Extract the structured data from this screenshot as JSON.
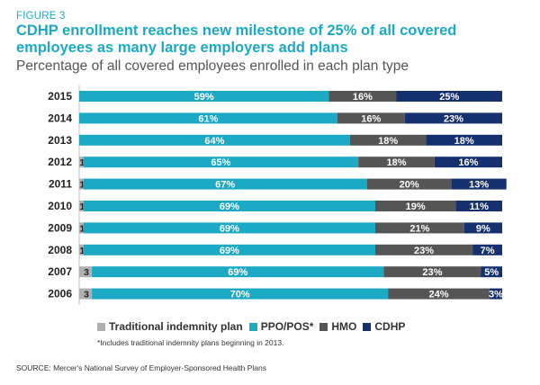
{
  "figure_label": "FIGURE 3",
  "title": "CDHP enrollment reaches new milestone of 25% of all covered employees as many large employers add plans",
  "subtitle": "Percentage of all covered employees enrolled in each plan type",
  "footnote": "*Includes traditional indemnity plans beginning in 2013.",
  "source": "SOURCE: Mercer's National Survey of Employer-Sponsored Health Plans",
  "colors": {
    "traditional_indemnity": "#b0b0b0",
    "ppo_pos": "#1ba9c4",
    "hmo": "#555555",
    "cdhp": "#14306e"
  },
  "chart_data": {
    "type": "bar",
    "orientation": "horizontal",
    "stacked": true,
    "categories": [
      "2015",
      "2014",
      "2013",
      "2012",
      "2011",
      "2010",
      "2009",
      "2008",
      "2007",
      "2006"
    ],
    "series": [
      {
        "key": "traditional_indemnity",
        "name": "Traditional indemnity plan",
        "values": [
          0,
          0,
          0,
          1,
          1,
          1,
          1,
          1,
          3,
          3
        ],
        "labels": [
          "",
          "",
          "",
          "1",
          "1",
          "1",
          "1",
          "1",
          "3",
          "3"
        ]
      },
      {
        "key": "ppo_pos",
        "name": "PPO/POS*",
        "values": [
          59,
          61,
          64,
          65,
          67,
          69,
          69,
          69,
          69,
          70
        ],
        "labels": [
          "59%",
          "61%",
          "64%",
          "65%",
          "67%",
          "69%",
          "69%",
          "69%",
          "69%",
          "70%"
        ]
      },
      {
        "key": "hmo",
        "name": "HMO",
        "values": [
          16,
          16,
          18,
          18,
          20,
          19,
          21,
          23,
          23,
          24
        ],
        "labels": [
          "16%",
          "16%",
          "18%",
          "18%",
          "20%",
          "19%",
          "21%",
          "23%",
          "23%",
          "24%"
        ]
      },
      {
        "key": "cdhp",
        "name": "CDHP",
        "values": [
          25,
          23,
          18,
          16,
          13,
          11,
          9,
          7,
          5,
          3
        ],
        "labels": [
          "25%",
          "23%",
          "18%",
          "16%",
          "13%",
          "11%",
          "9%",
          "7%",
          "5%",
          "3%"
        ]
      }
    ],
    "xlim": [
      0,
      100
    ],
    "grid": false,
    "legend_position": "bottom"
  }
}
